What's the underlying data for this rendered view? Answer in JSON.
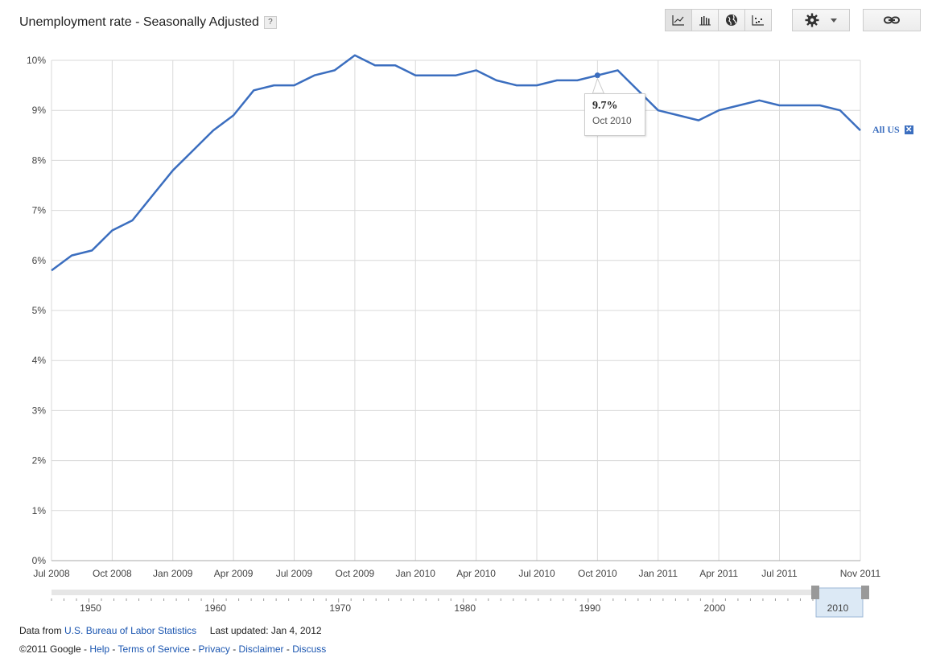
{
  "title": "Unemployment rate - Seasonally Adjusted",
  "help_label": "?",
  "toolbar": {
    "buttons": [
      "line-chart-icon",
      "bar-chart-icon",
      "globe-icon",
      "scatter-icon"
    ],
    "gear_icon": "gear-icon",
    "link_icon": "link-icon"
  },
  "tooltip": {
    "value": "9.7%",
    "date": "Oct 2010"
  },
  "series_label": "All US",
  "series_remove": "✕",
  "timeline": {
    "labels": [
      "1950",
      "1960",
      "1970",
      "1980",
      "1990",
      "2000"
    ],
    "selected_label": "2010"
  },
  "footer": {
    "data_from": "Data from",
    "source": "U.S. Bureau of Labor Statistics",
    "updated": "Last updated: Jan 4, 2012",
    "copyright": "©2011 Google",
    "links": [
      "Help",
      "Terms of Service",
      "Privacy",
      "Disclaimer",
      "Discuss"
    ]
  },
  "colors": {
    "line": "#3b6ebf",
    "grid": "#d9d9d9",
    "timeline_fill": "#dce9f5"
  },
  "chart_data": {
    "type": "line",
    "x_tick_labels": [
      "Jul 2008",
      "Oct 2008",
      "Jan 2009",
      "Apr 2009",
      "Jul 2009",
      "Oct 2009",
      "Jan 2010",
      "Apr 2010",
      "Jul 2010",
      "Oct 2010",
      "Jan 2011",
      "Apr 2011",
      "Jul 2011",
      "Nov 2011"
    ],
    "y_tick_labels": [
      "0%",
      "1%",
      "2%",
      "3%",
      "4%",
      "5%",
      "6%",
      "7%",
      "8%",
      "9%",
      "10%"
    ],
    "ylim": [
      0,
      10
    ],
    "grid": true,
    "series": [
      {
        "name": "All US",
        "x": [
          "Jul 2008",
          "Aug 2008",
          "Sep 2008",
          "Oct 2008",
          "Nov 2008",
          "Dec 2008",
          "Jan 2009",
          "Feb 2009",
          "Mar 2009",
          "Apr 2009",
          "May 2009",
          "Jun 2009",
          "Jul 2009",
          "Aug 2009",
          "Sep 2009",
          "Oct 2009",
          "Nov 2009",
          "Dec 2009",
          "Jan 2010",
          "Feb 2010",
          "Mar 2010",
          "Apr 2010",
          "May 2010",
          "Jun 2010",
          "Jul 2010",
          "Aug 2010",
          "Sep 2010",
          "Oct 2010",
          "Nov 2010",
          "Dec 2010",
          "Jan 2011",
          "Feb 2011",
          "Mar 2011",
          "Apr 2011",
          "May 2011",
          "Jun 2011",
          "Jul 2011",
          "Aug 2011",
          "Sep 2011",
          "Oct 2011",
          "Nov 2011"
        ],
        "values": [
          5.8,
          6.1,
          6.2,
          6.6,
          6.8,
          7.3,
          7.8,
          8.2,
          8.6,
          8.9,
          9.4,
          9.5,
          9.5,
          9.7,
          9.8,
          10.1,
          9.9,
          9.9,
          9.7,
          9.7,
          9.7,
          9.8,
          9.6,
          9.5,
          9.5,
          9.6,
          9.6,
          9.7,
          9.8,
          9.4,
          9.0,
          8.9,
          8.8,
          9.0,
          9.1,
          9.2,
          9.1,
          9.1,
          9.1,
          9.0,
          8.6
        ]
      }
    ],
    "highlight": {
      "x": "Oct 2010",
      "value": 9.7
    }
  }
}
